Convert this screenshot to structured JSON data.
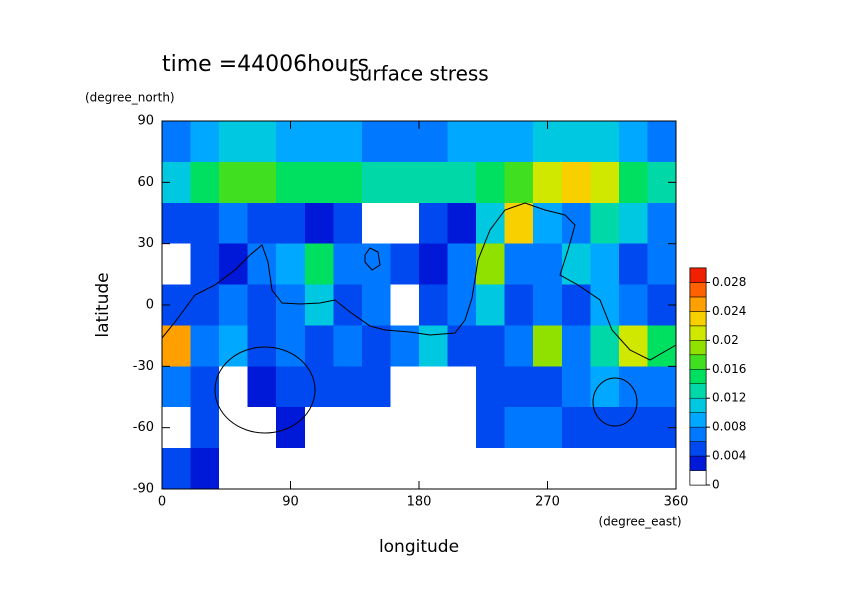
{
  "chart_data": {
    "type": "heatmap",
    "title": "surface stress",
    "subtitle": "time =44006hours",
    "x_label": "longitude",
    "y_label": "latitude",
    "x_unit": "(degree_east)",
    "y_unit": "(degree_north)",
    "xlim": [
      0,
      360
    ],
    "ylim": [
      -90,
      90
    ],
    "xticks": [
      0,
      90,
      180,
      270,
      360
    ],
    "yticks": [
      -90,
      -60,
      -30,
      0,
      30,
      60,
      90
    ],
    "x": [
      10,
      30,
      50,
      70,
      90,
      110,
      130,
      150,
      170,
      190,
      210,
      230,
      250,
      270,
      290,
      310,
      330,
      350
    ],
    "y": [
      80,
      60,
      40,
      20,
      0,
      -20,
      -40,
      -60,
      -80
    ],
    "values": [
      [
        0.006,
        0.008,
        0.01,
        0.01,
        0.008,
        0.008,
        0.008,
        0.006,
        0.006,
        0.006,
        0.008,
        0.008,
        0.008,
        0.01,
        0.01,
        0.01,
        0.008,
        0.006
      ],
      [
        0.01,
        0.014,
        0.016,
        0.016,
        0.014,
        0.014,
        0.014,
        0.012,
        0.012,
        0.012,
        0.012,
        0.014,
        0.016,
        0.02,
        0.022,
        0.02,
        0.014,
        0.012
      ],
      [
        0.004,
        0.004,
        0.006,
        0.004,
        0.004,
        0.002,
        0.004,
        0,
        0,
        0.004,
        0.002,
        0.01,
        0.022,
        0.008,
        0.006,
        0.012,
        0.01,
        0.006
      ],
      [
        0,
        0.004,
        0.002,
        0.006,
        0.008,
        0.014,
        0.006,
        0.006,
        0.004,
        0.002,
        0.006,
        0.018,
        0.006,
        0.006,
        0.01,
        0.008,
        0.004,
        0.006
      ],
      [
        0.004,
        0.004,
        0.006,
        0.004,
        0.006,
        0.01,
        0.004,
        0.006,
        0,
        0.004,
        0.006,
        0.01,
        0.004,
        0.006,
        0.004,
        0.008,
        0.006,
        0.004
      ],
      [
        0.024,
        0.006,
        0.008,
        0.004,
        0.006,
        0.004,
        0.006,
        0.004,
        0.006,
        0.01,
        0.004,
        0.004,
        0.006,
        0.018,
        0.006,
        0.012,
        0.02,
        0.014
      ],
      [
        0.006,
        0.004,
        0,
        0.002,
        0.004,
        0.004,
        0.004,
        0.004,
        0,
        0,
        0,
        0.004,
        0.004,
        0.004,
        0.006,
        0.008,
        0.006,
        0.006
      ],
      [
        0,
        0.004,
        0,
        0,
        0.002,
        0,
        0,
        0,
        0,
        0,
        0,
        0.004,
        0.006,
        0.006,
        0.004,
        0.004,
        0.004,
        0.004
      ],
      [
        0.004,
        0.002,
        0,
        0,
        0,
        0,
        0,
        0,
        0,
        0,
        0,
        0,
        0,
        0,
        0,
        0,
        0,
        0
      ]
    ],
    "colorbar": {
      "lim": [
        0,
        0.03
      ],
      "ticks": [
        0,
        0.004,
        0.008,
        0.012,
        0.016,
        0.02,
        0.024,
        0.028
      ],
      "levels": [
        0,
        0.002,
        0.004,
        0.006,
        0.008,
        0.01,
        0.012,
        0.014,
        0.016,
        0.018,
        0.02,
        0.022,
        0.024,
        0.026,
        0.028,
        0.03
      ],
      "colors": [
        "#ffffff",
        "#0018d8",
        "#0048f0",
        "#0078ff",
        "#00a8ff",
        "#00c8e0",
        "#00d8a8",
        "#00e060",
        "#40e020",
        "#90e000",
        "#d0e800",
        "#f8d000",
        "#ffa000",
        "#ff6000",
        "#f02000"
      ]
    }
  }
}
